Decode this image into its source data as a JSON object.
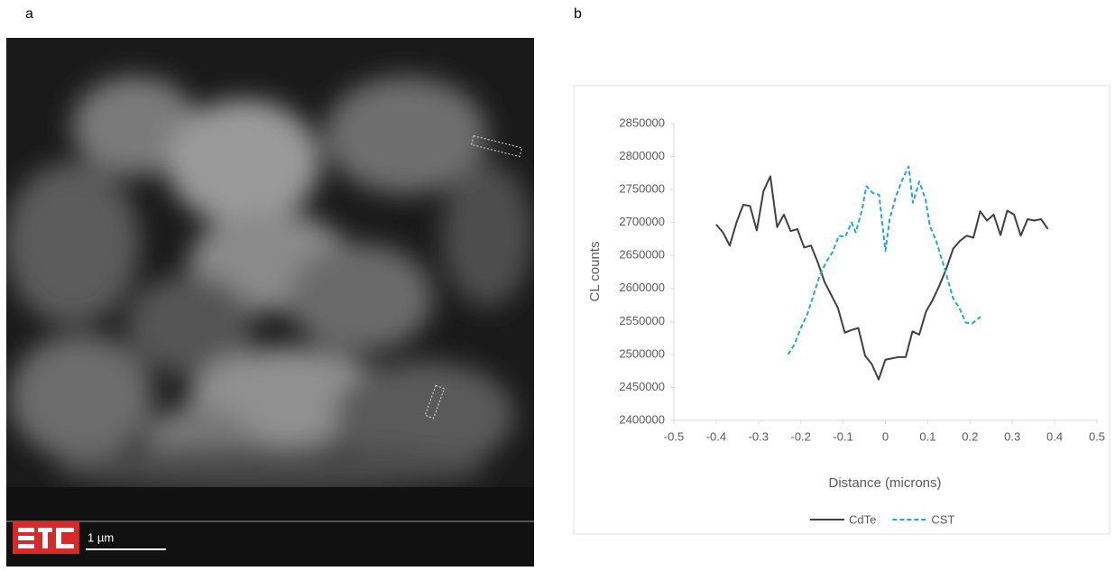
{
  "panel_labels": [
    "a",
    "b"
  ],
  "image": {
    "scale_bar": "1 µm"
  },
  "chart_data": {
    "type": "line",
    "xlabel": "Distance (microns)",
    "ylabel": "CL counts",
    "xlim": [
      -0.5,
      0.5
    ],
    "xticks": [
      -0.5,
      -0.4,
      -0.3,
      -0.2,
      -0.1,
      0,
      0.1,
      0.2,
      0.3,
      0.4,
      0.5
    ],
    "ylim": [
      2400000,
      2850000
    ],
    "yticks": [
      2400000,
      2450000,
      2500000,
      2550000,
      2600000,
      2650000,
      2700000,
      2750000,
      2800000,
      2850000
    ],
    "legend": "bottom",
    "series": [
      {
        "name": "CdTe",
        "color": "#404040",
        "linestyle": "solid",
        "x": [
          -0.4,
          -0.384,
          -0.368,
          -0.352,
          -0.336,
          -0.32,
          -0.304,
          -0.288,
          -0.272,
          -0.256,
          -0.24,
          -0.224,
          -0.208,
          -0.192,
          -0.176,
          -0.16,
          -0.144,
          -0.128,
          -0.112,
          -0.096,
          -0.08,
          -0.064,
          -0.048,
          -0.032,
          -0.016,
          0,
          0.016,
          0.032,
          0.048,
          0.064,
          0.08,
          0.096,
          0.112,
          0.128,
          0.144,
          0.16,
          0.176,
          0.192,
          0.208,
          0.224,
          0.24,
          0.256,
          0.272,
          0.288,
          0.304,
          0.32,
          0.336,
          0.352,
          0.368,
          0.384
        ],
        "values": [
          2697000,
          2685000,
          2665000,
          2700000,
          2727000,
          2725000,
          2688000,
          2748000,
          2770000,
          2693000,
          2712000,
          2687000,
          2690000,
          2662000,
          2665000,
          2640000,
          2610000,
          2590000,
          2570000,
          2533000,
          2537000,
          2540000,
          2498000,
          2485000,
          2462000,
          2492000,
          2494000,
          2496000,
          2496000,
          2535000,
          2530000,
          2565000,
          2583000,
          2605000,
          2630000,
          2660000,
          2672000,
          2680000,
          2677000,
          2717000,
          2703000,
          2712000,
          2681000,
          2718000,
          2712000,
          2680000,
          2705000,
          2703000,
          2705000,
          2690000
        ]
      },
      {
        "name": "CST",
        "color": "#1fa8dc",
        "linestyle": "dashed",
        "x": [
          -0.23,
          -0.215,
          -0.2,
          -0.185,
          -0.17,
          -0.155,
          -0.14,
          -0.125,
          -0.11,
          -0.095,
          -0.08,
          -0.07,
          -0.055,
          -0.045,
          -0.03,
          -0.015,
          0,
          0.01,
          0.025,
          0.04,
          0.055,
          0.065,
          0.08,
          0.095,
          0.105,
          0.12,
          0.14,
          0.16,
          0.175,
          0.19,
          0.205,
          0.225
        ],
        "values": [
          2500000,
          2515000,
          2540000,
          2560000,
          2590000,
          2620000,
          2640000,
          2655000,
          2680000,
          2678000,
          2700000,
          2685000,
          2720000,
          2755000,
          2745000,
          2742000,
          2657000,
          2705000,
          2740000,
          2765000,
          2785000,
          2730000,
          2762000,
          2735000,
          2695000,
          2672000,
          2630000,
          2585000,
          2570000,
          2548000,
          2547000,
          2557000
        ]
      }
    ]
  }
}
